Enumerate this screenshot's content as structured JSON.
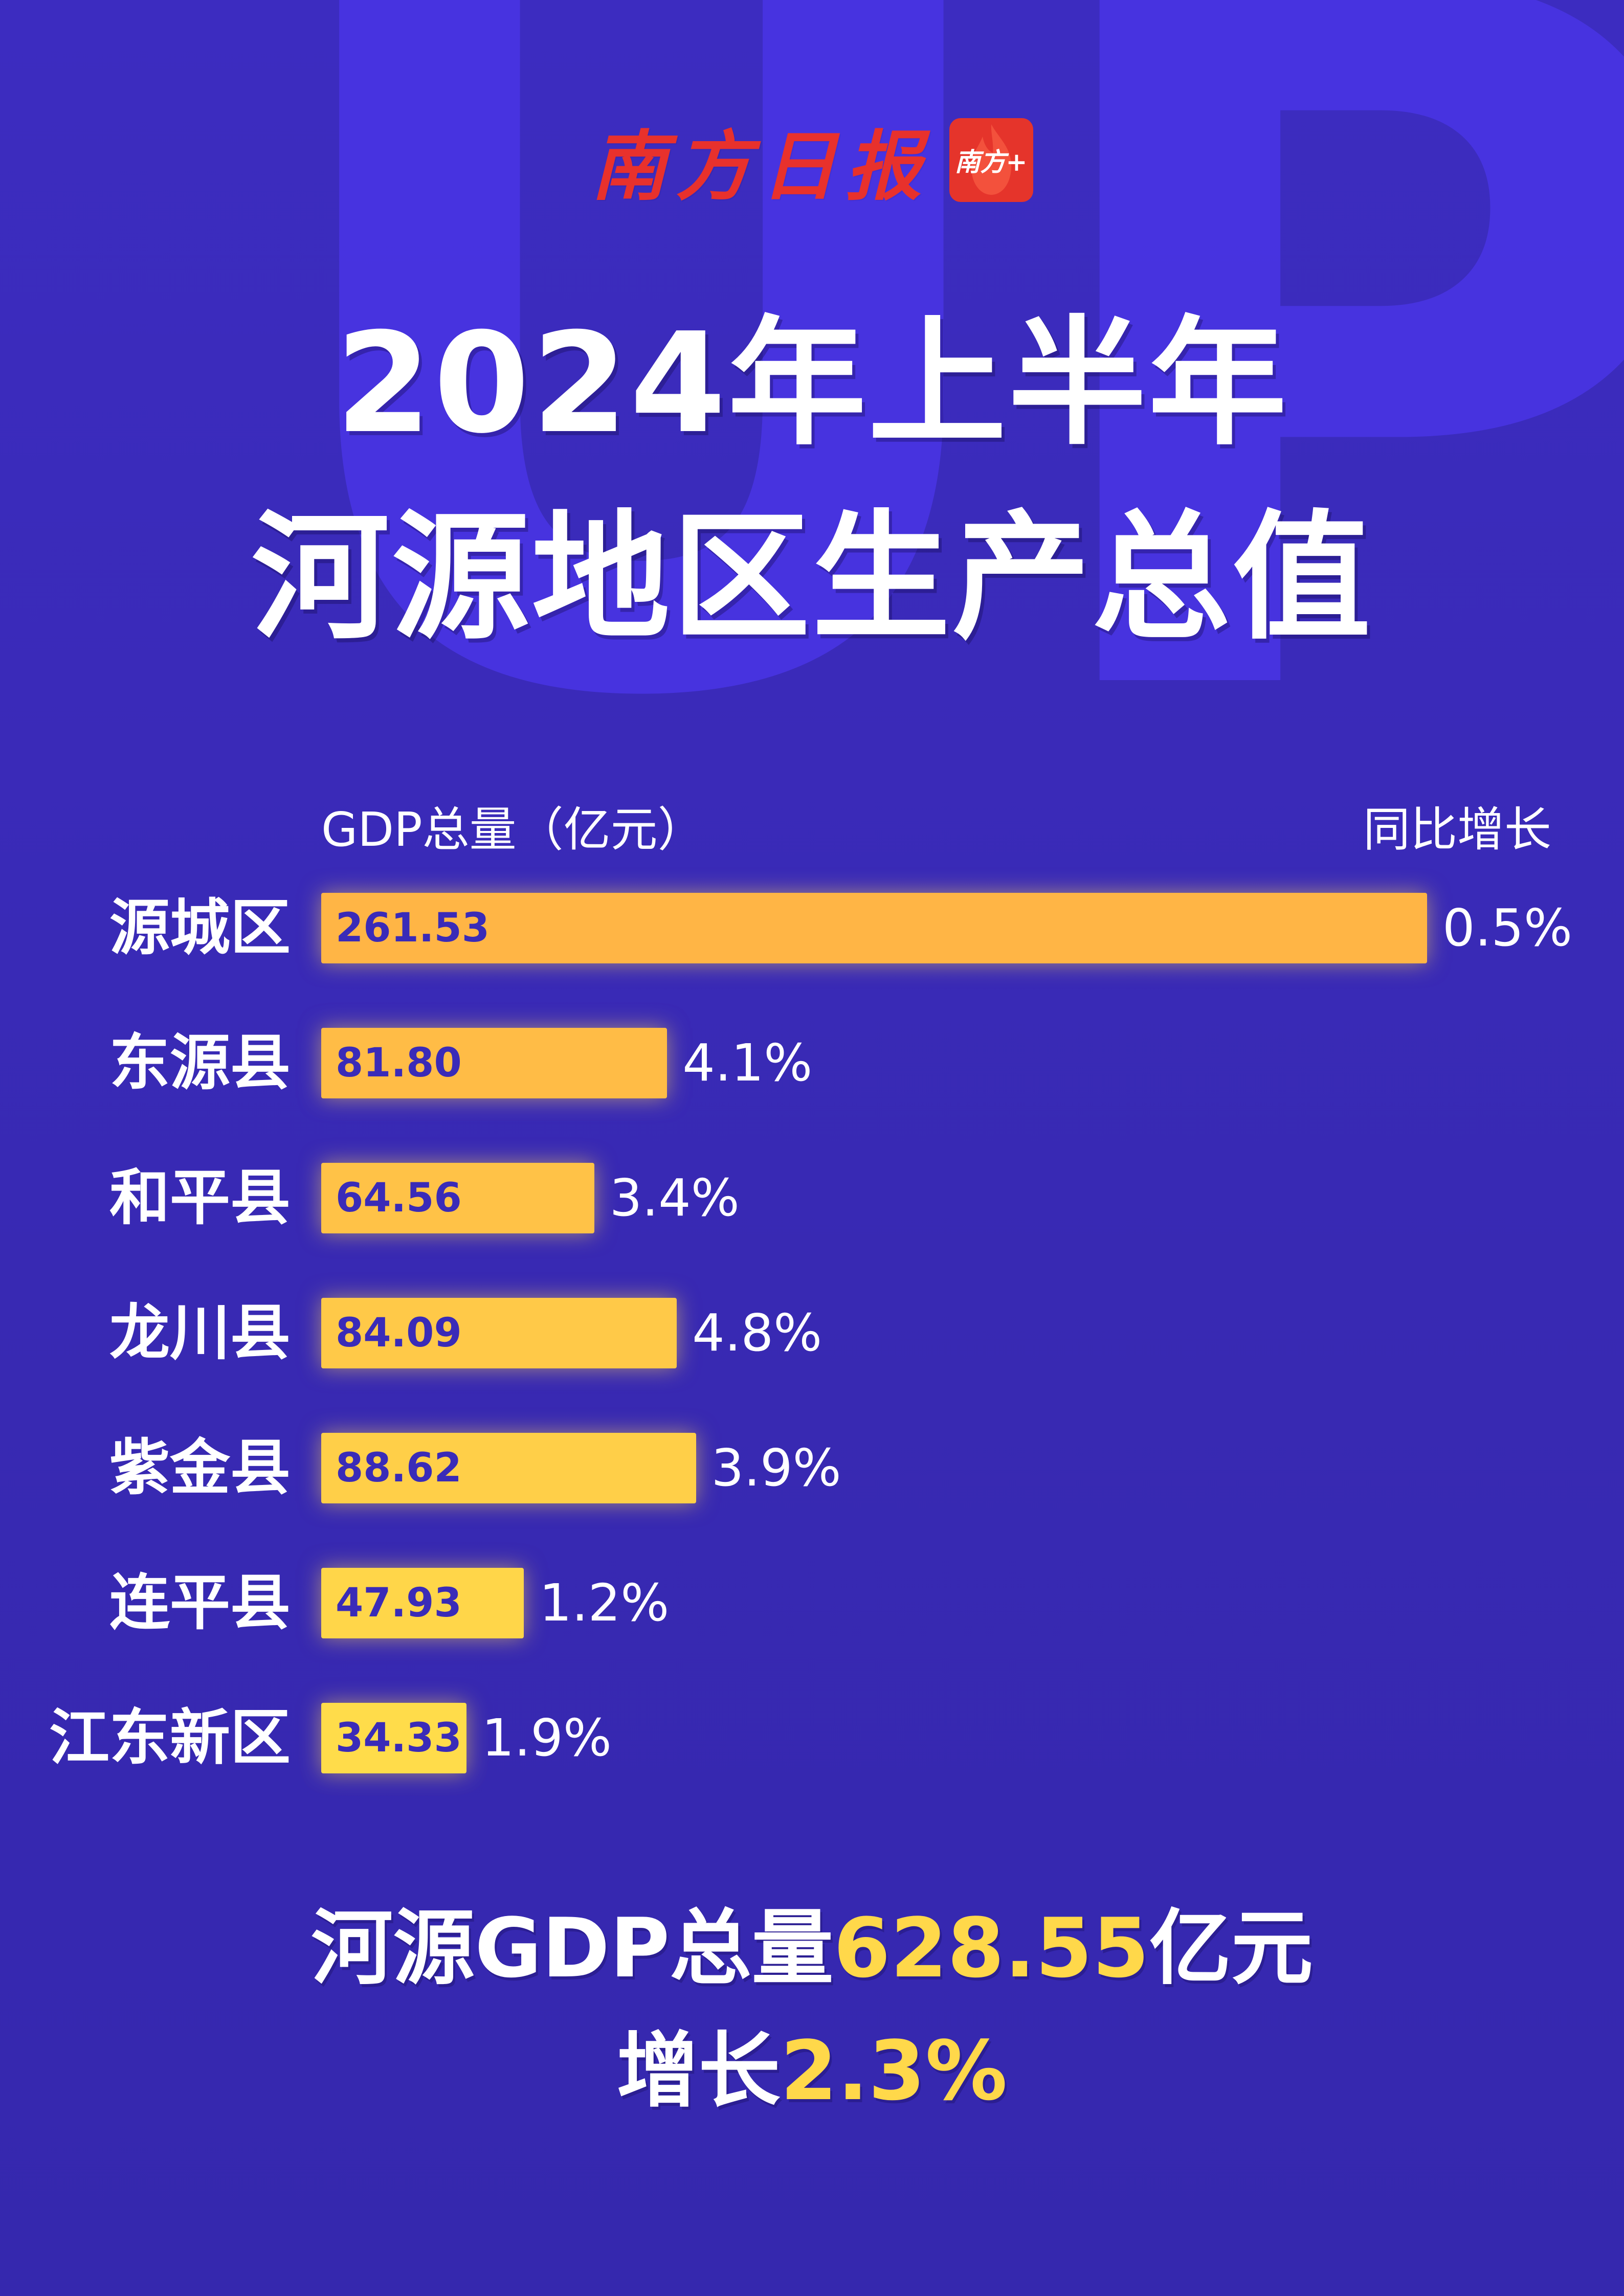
{
  "backdrop": {
    "text": "UP"
  },
  "brand": {
    "name": "南方日报",
    "badge": "南方+"
  },
  "title": {
    "line1": "2024年上半年",
    "line2": "河源地区生产总值"
  },
  "colors": {
    "background": "#3a2bb8",
    "bar_start": "#ffb545",
    "bar_end": "#ffd84a",
    "highlight": "#ffd84a",
    "brand_red": "#e5342b"
  },
  "chart_data": {
    "type": "bar",
    "orientation": "horizontal",
    "xlabel": "GDP总量（亿元）",
    "growth_label": "同比增长",
    "categories": [
      "源城区",
      "东源县",
      "和平县",
      "龙川县",
      "紫金县",
      "连平县",
      "江东新区"
    ],
    "series": [
      {
        "values": [
          261.53,
          81.8,
          64.56,
          84.09,
          88.62,
          47.93,
          34.33
        ]
      }
    ],
    "value_labels": [
      "261.53",
      "81.80",
      "64.56",
      "84.09",
      "88.62",
      "47.93",
      "34.33"
    ],
    "growth": [
      "0.5%",
      "4.1%",
      "3.4%",
      "4.8%",
      "3.9%",
      "1.2%",
      "1.9%"
    ],
    "xlim": [
      0,
      261.53
    ],
    "grid": false
  },
  "summary": {
    "line1_pre": "河源GDP总量",
    "line1_value": "628.55",
    "line1_post": "亿元",
    "line2_pre": "增长",
    "line2_value": "2.3%"
  }
}
